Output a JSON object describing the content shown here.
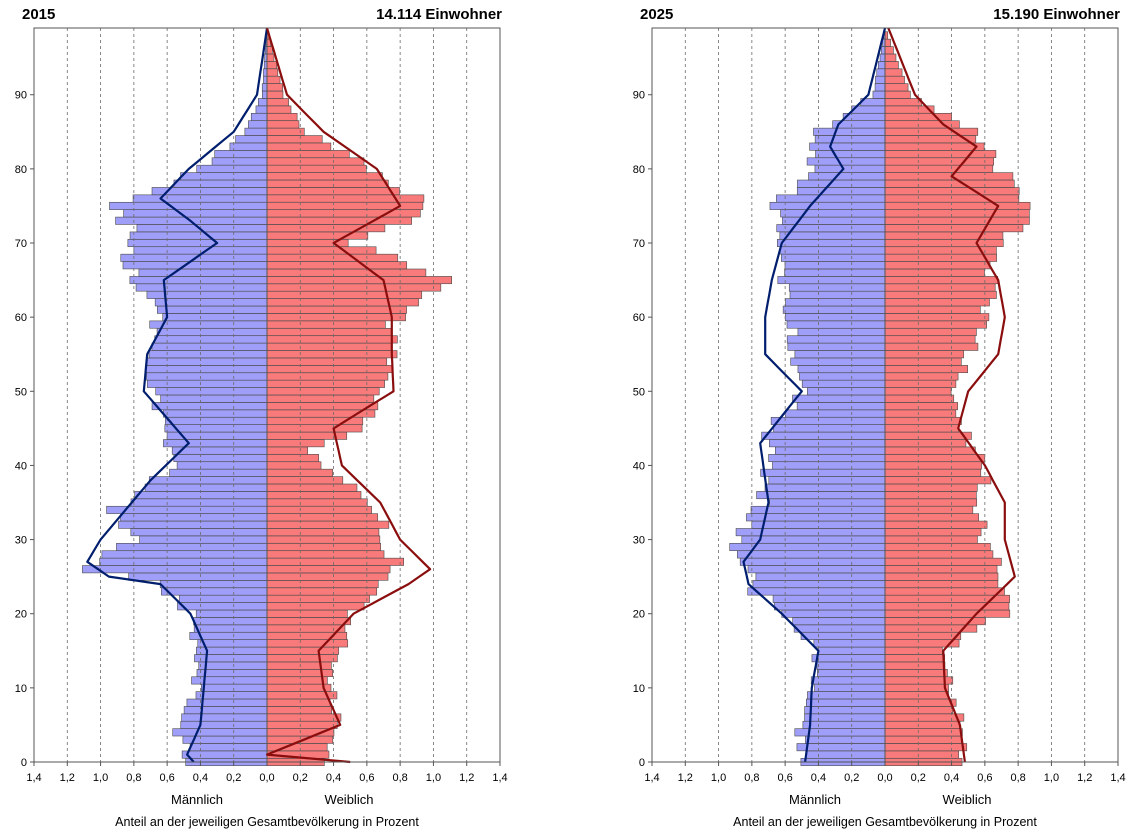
{
  "chart_data": [
    {
      "type": "bar",
      "orientation": "horizontal",
      "subtype": "population-pyramid",
      "year": "2015",
      "population_label": "14.114 Einwohner",
      "x_left_label": "Männlich",
      "x_right_label": "Weiblich",
      "xlabel": "Anteil an der jeweiligen Gesamtbevölkerung in Prozent",
      "xlim": [
        -1.4,
        1.4
      ],
      "x_ticks": [
        1.4,
        1.2,
        1.0,
        0.8,
        0.6,
        0.4,
        0.2,
        0.0,
        0.2,
        0.4,
        0.6,
        0.8,
        1.0,
        1.2,
        1.4
      ],
      "x_tick_labels": [
        "1,4",
        "1,2",
        "1,0",
        "0,8",
        "0,6",
        "0,4",
        "0,2",
        "0,0",
        "0,2",
        "0,4",
        "0,6",
        "0,8",
        "1,0",
        "1,2",
        "1,4"
      ],
      "ylim": [
        0,
        99
      ],
      "y_ticks": [
        0,
        10,
        20,
        30,
        40,
        50,
        60,
        70,
        80,
        90
      ],
      "grid_x": "dashed",
      "series": [
        {
          "name": "Männlich",
          "color": "#9f9ff9",
          "side": "left",
          "key_ages": {
            "0": 0.46,
            "5": 0.55,
            "10": 0.42,
            "20": 0.46,
            "24": 0.65,
            "26": 1.1,
            "30": 0.82,
            "33": 0.95,
            "40": 0.55,
            "50": 0.7,
            "60": 0.65,
            "65": 0.8,
            "73": 0.85,
            "75": 0.9,
            "80": 0.4,
            "85": 0.13,
            "90": 0.03,
            "99": 0.0
          }
        },
        {
          "name": "Weiblich",
          "color": "#f87a7a",
          "side": "right",
          "key_ages": {
            "0": 0.36,
            "5": 0.44,
            "10": 0.38,
            "20": 0.5,
            "26": 0.8,
            "30": 0.72,
            "35": 0.62,
            "42": 0.24,
            "45": 0.56,
            "50": 0.68,
            "60": 0.78,
            "65": 1.07,
            "70": 0.53,
            "75": 1.0,
            "80": 0.62,
            "85": 0.23,
            "90": 0.1,
            "99": 0.0
          }
        }
      ],
      "comparison_lines": [
        {
          "side": "left",
          "color": "#001e6e",
          "key_ages": {
            "0": 0.44,
            "1": 0.48,
            "5": 0.4,
            "15": 0.36,
            "20": 0.46,
            "24": 0.64,
            "25": 0.95,
            "27": 1.08,
            "30": 1.0,
            "34": 0.85,
            "38": 0.7,
            "43": 0.47,
            "50": 0.74,
            "55": 0.72,
            "60": 0.6,
            "65": 0.62,
            "70": 0.3,
            "73": 0.46,
            "76": 0.64,
            "80": 0.47,
            "85": 0.2,
            "90": 0.06,
            "99": 0.0
          }
        },
        {
          "side": "right",
          "color": "#8b0e0e",
          "key_ages": {
            "0": 0.5,
            "1": 0.0,
            "5": 0.44,
            "10": 0.34,
            "15": 0.31,
            "20": 0.52,
            "24": 0.85,
            "26": 0.98,
            "30": 0.8,
            "35": 0.68,
            "40": 0.45,
            "45": 0.4,
            "50": 0.76,
            "55": 0.75,
            "60": 0.75,
            "65": 0.7,
            "70": 0.4,
            "75": 0.8,
            "80": 0.66,
            "85": 0.34,
            "90": 0.12,
            "99": 0.0
          }
        }
      ]
    },
    {
      "type": "bar",
      "orientation": "horizontal",
      "subtype": "population-pyramid",
      "year": "2025",
      "population_label": "15.190 Einwohner",
      "x_left_label": "Männlich",
      "x_right_label": "Weiblich",
      "xlabel": "Anteil an der jeweiligen Gesamtbevölkerung in Prozent",
      "xlim": [
        -1.4,
        1.4
      ],
      "x_ticks": [
        1.4,
        1.2,
        1.0,
        0.8,
        0.6,
        0.4,
        0.2,
        0.0,
        0.2,
        0.4,
        0.6,
        0.8,
        1.0,
        1.2,
        1.4
      ],
      "x_tick_labels": [
        "1,4",
        "1,2",
        "1,0",
        "0,8",
        "0,6",
        "0,4",
        "0,2",
        "0,0",
        "0,2",
        "0,4",
        "0,6",
        "0,8",
        "1,0",
        "1,2",
        "1,4"
      ],
      "ylim": [
        0,
        99
      ],
      "y_ticks": [
        0,
        10,
        20,
        30,
        40,
        50,
        60,
        70,
        80,
        90
      ],
      "grid_x": "dashed",
      "series": [
        {
          "name": "Männlich",
          "color": "#9f9ff9",
          "side": "left",
          "key_ages": {
            "0": 0.52,
            "5": 0.5,
            "10": 0.45,
            "15": 0.42,
            "20": 0.62,
            "24": 0.82,
            "28": 0.88,
            "30": 0.85,
            "35": 0.75,
            "40": 0.72,
            "45": 0.68,
            "50": 0.5,
            "55": 0.55,
            "60": 0.57,
            "65": 0.62,
            "70": 0.6,
            "75": 0.65,
            "80": 0.45,
            "85": 0.4,
            "90": 0.07,
            "99": 0.0
          }
        },
        {
          "name": "Weiblich",
          "color": "#f87a7a",
          "side": "right",
          "key_ages": {
            "0": 0.47,
            "5": 0.46,
            "10": 0.4,
            "15": 0.35,
            "20": 0.7,
            "25": 0.72,
            "30": 0.6,
            "35": 0.55,
            "40": 0.62,
            "45": 0.45,
            "50": 0.42,
            "55": 0.5,
            "60": 0.62,
            "65": 0.63,
            "70": 0.72,
            "75": 0.86,
            "80": 0.7,
            "85": 0.52,
            "90": 0.15,
            "99": 0.0
          }
        }
      ],
      "comparison_lines": [
        {
          "side": "left",
          "color": "#001e6e",
          "key_ages": {
            "0": 0.48,
            "5": 0.45,
            "10": 0.44,
            "15": 0.4,
            "20": 0.62,
            "24": 0.82,
            "27": 0.85,
            "30": 0.75,
            "35": 0.7,
            "43": 0.75,
            "50": 0.5,
            "55": 0.72,
            "60": 0.72,
            "65": 0.68,
            "70": 0.62,
            "75": 0.45,
            "80": 0.25,
            "83": 0.33,
            "86": 0.28,
            "90": 0.1,
            "99": 0.0
          }
        },
        {
          "side": "right",
          "color": "#8b0e0e",
          "key_ages": {
            "0": 0.48,
            "5": 0.45,
            "10": 0.36,
            "15": 0.35,
            "20": 0.55,
            "25": 0.78,
            "30": 0.72,
            "35": 0.72,
            "40": 0.6,
            "45": 0.44,
            "50": 0.5,
            "55": 0.68,
            "60": 0.72,
            "65": 0.68,
            "70": 0.55,
            "75": 0.68,
            "79": 0.4,
            "83": 0.55,
            "86": 0.35,
            "90": 0.18,
            "99": 0.02
          }
        }
      ]
    }
  ]
}
